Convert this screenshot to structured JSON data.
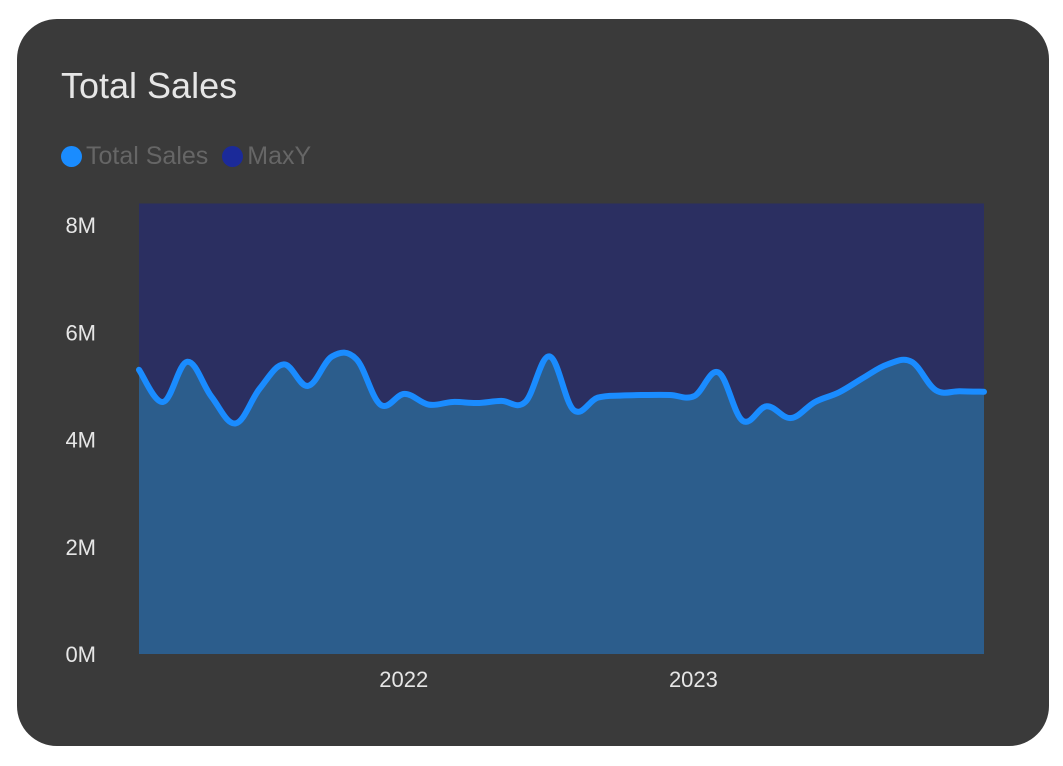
{
  "card": {
    "title": "Total Sales"
  },
  "colors": {
    "card_bg": "#3a3a3a",
    "sales": "#1a8cff",
    "sales_area": "#2c5d8c",
    "maxy": "#1b2a99",
    "maxy_area": "#2b2f61",
    "text": "#e6e6e6",
    "legend_text": "#666666"
  },
  "chart_data": {
    "type": "area",
    "title": "Total Sales",
    "legend": {
      "position": "top-left",
      "entries": [
        "Total Sales",
        "MaxY"
      ]
    },
    "x_ticks": [
      {
        "label": "2022",
        "date": "2022-01"
      },
      {
        "label": "2023",
        "date": "2023-01"
      }
    ],
    "y_ticks": [
      {
        "label": "0M",
        "value": 0
      },
      {
        "label": "2M",
        "value": 2000000
      },
      {
        "label": "4M",
        "value": 4000000
      },
      {
        "label": "6M",
        "value": 6000000
      },
      {
        "label": "8M",
        "value": 8000000
      }
    ],
    "ylim": [
      0,
      8000000
    ],
    "grid": false,
    "x": [
      "2021-01",
      "2021-02",
      "2021-03",
      "2021-04",
      "2021-05",
      "2021-06",
      "2021-07",
      "2021-08",
      "2021-09",
      "2021-10",
      "2021-11",
      "2021-12",
      "2022-01",
      "2022-02",
      "2022-03",
      "2022-04",
      "2022-05",
      "2022-06",
      "2022-07",
      "2022-08",
      "2022-09",
      "2022-10",
      "2022-11",
      "2022-12",
      "2023-01",
      "2023-02",
      "2023-03",
      "2023-04",
      "2023-05",
      "2023-06",
      "2023-07",
      "2023-08",
      "2023-09",
      "2023-10",
      "2023-11",
      "2023-12"
    ],
    "series": [
      {
        "name": "Total Sales",
        "values": [
          5300000,
          4700000,
          5450000,
          4800000,
          4300000,
          4950000,
          5400000,
          5000000,
          5550000,
          5500000,
          4650000,
          4850000,
          4650000,
          4700000,
          4680000,
          4720000,
          4700000,
          5550000,
          4550000,
          4780000,
          4820000,
          4830000,
          4830000,
          4810000,
          5250000,
          4350000,
          4620000,
          4400000,
          4700000,
          4880000,
          5150000,
          5400000,
          5450000,
          4920000,
          4900000,
          4890000
        ]
      },
      {
        "name": "MaxY",
        "values": [
          8400000,
          8400000,
          8400000,
          8400000,
          8400000,
          8400000,
          8400000,
          8400000,
          8400000,
          8400000,
          8400000,
          8400000,
          8400000,
          8400000,
          8400000,
          8400000,
          8400000,
          8400000,
          8400000,
          8400000,
          8400000,
          8400000,
          8400000,
          8400000,
          8400000,
          8400000,
          8400000,
          8400000,
          8400000,
          8400000,
          8400000,
          8400000,
          8400000,
          8400000,
          8400000,
          8400000
        ]
      }
    ]
  }
}
